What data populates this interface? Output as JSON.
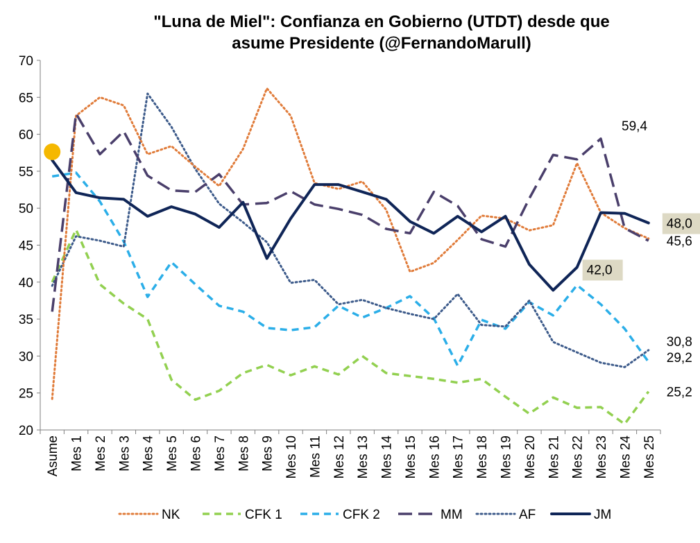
{
  "chart_data": {
    "type": "line",
    "title_line1": "\"Luna de Miel\": Confianza en Gobierno (UTDT) desde que",
    "title_line2": "asume Presidente (@FernandoMarull)",
    "xlabel": "",
    "ylabel": "",
    "ylim": [
      20,
      70
    ],
    "yticks": [
      20,
      25,
      30,
      35,
      40,
      45,
      50,
      55,
      60,
      65,
      70
    ],
    "grid": false,
    "legend_position": "bottom",
    "categories": [
      "Asume",
      "Mes 1",
      "Mes 2",
      "Mes 3",
      "Mes 4",
      "Mes 5",
      "Mes 6",
      "Mes 7",
      "Mes 8",
      "Mes 9",
      "Mes 10",
      "Mes 11",
      "Mes 12",
      "Mes 13",
      "Mes 14",
      "Mes 15",
      "Mes 16",
      "Mes 17",
      "Mes 18",
      "Mes 19",
      "Mes 20",
      "Mes 21",
      "Mes 22",
      "Mes 23",
      "Mes 24",
      "Mes 25"
    ],
    "series": [
      {
        "name": "NK",
        "color": "#E07B39",
        "style": "dotted",
        "values": [
          24.2,
          62.5,
          65.0,
          63.9,
          57.3,
          58.4,
          55.6,
          53.0,
          58.0,
          66.2,
          62.5,
          53.4,
          52.6,
          53.6,
          49.8,
          41.4,
          42.6,
          45.7,
          49.0,
          48.6,
          47.0,
          47.7,
          56.1,
          49.4,
          47.3,
          45.9
        ]
      },
      {
        "name": "CFK 1",
        "color": "#92D050",
        "style": "dash",
        "values": [
          40.0,
          47.1,
          39.7,
          37.1,
          35.0,
          26.8,
          24.1,
          25.3,
          27.7,
          28.8,
          27.4,
          28.6,
          27.5,
          30.0,
          27.7,
          27.3,
          26.9,
          26.4,
          26.9,
          24.5,
          22.2,
          24.4,
          23.0,
          23.1,
          20.8,
          25.2
        ]
      },
      {
        "name": "CFK 2",
        "color": "#2BAEE8",
        "style": "dash",
        "values": [
          54.3,
          54.8,
          50.9,
          45.5,
          38.0,
          42.7,
          39.7,
          36.8,
          36.0,
          33.8,
          33.5,
          33.9,
          36.8,
          35.2,
          36.5,
          38.1,
          35.1,
          28.7,
          34.9,
          33.7,
          37.3,
          35.5,
          39.6,
          37.0,
          33.7,
          29.2
        ]
      },
      {
        "name": "MM",
        "color": "#4A3F6B",
        "style": "longdash",
        "values": [
          36.0,
          62.8,
          57.3,
          60.4,
          54.4,
          52.4,
          52.2,
          54.6,
          50.5,
          50.7,
          52.3,
          50.5,
          49.9,
          49.1,
          47.2,
          46.6,
          52.2,
          50.3,
          45.8,
          44.8,
          51.3,
          57.2,
          56.6,
          59.4,
          47.3,
          45.6
        ]
      },
      {
        "name": "AF",
        "color": "#3C5A8A",
        "style": "dotted",
        "values": [
          39.5,
          46.2,
          45.6,
          44.8,
          65.5,
          61.0,
          55.3,
          50.6,
          48.1,
          45.4,
          39.9,
          40.3,
          37.0,
          37.6,
          36.5,
          35.7,
          35.0,
          38.4,
          34.2,
          34.0,
          37.5,
          31.9,
          30.5,
          29.1,
          28.5,
          30.8
        ]
      },
      {
        "name": "JM",
        "color": "#0F2557",
        "style": "solid",
        "values": [
          56.5,
          52.1,
          51.4,
          51.2,
          48.9,
          50.2,
          49.2,
          47.4,
          50.8,
          43.2,
          48.6,
          53.2,
          53.2,
          52.2,
          51.2,
          48.2,
          46.6,
          48.9,
          46.8,
          48.9,
          42.4,
          38.9,
          42.0,
          49.4,
          49.3,
          48.0
        ]
      }
    ],
    "annotations": [
      {
        "text": "59,4",
        "series": "MM",
        "index": 23
      },
      {
        "text": "48,0",
        "series": "JM",
        "index": 25,
        "boxed": true
      },
      {
        "text": "45,6",
        "series": "MM",
        "index": 25
      },
      {
        "text": "42,0",
        "series": "JM",
        "index": 22,
        "boxed": true
      },
      {
        "text": "30,8",
        "series": "AF",
        "index": 25
      },
      {
        "text": "29,2",
        "series": "CFK 2",
        "index": 25
      },
      {
        "text": "25,2",
        "series": "CFK 1",
        "index": 25
      }
    ],
    "marker": {
      "series": "JM",
      "index": 0,
      "color": "#F5B800"
    }
  }
}
